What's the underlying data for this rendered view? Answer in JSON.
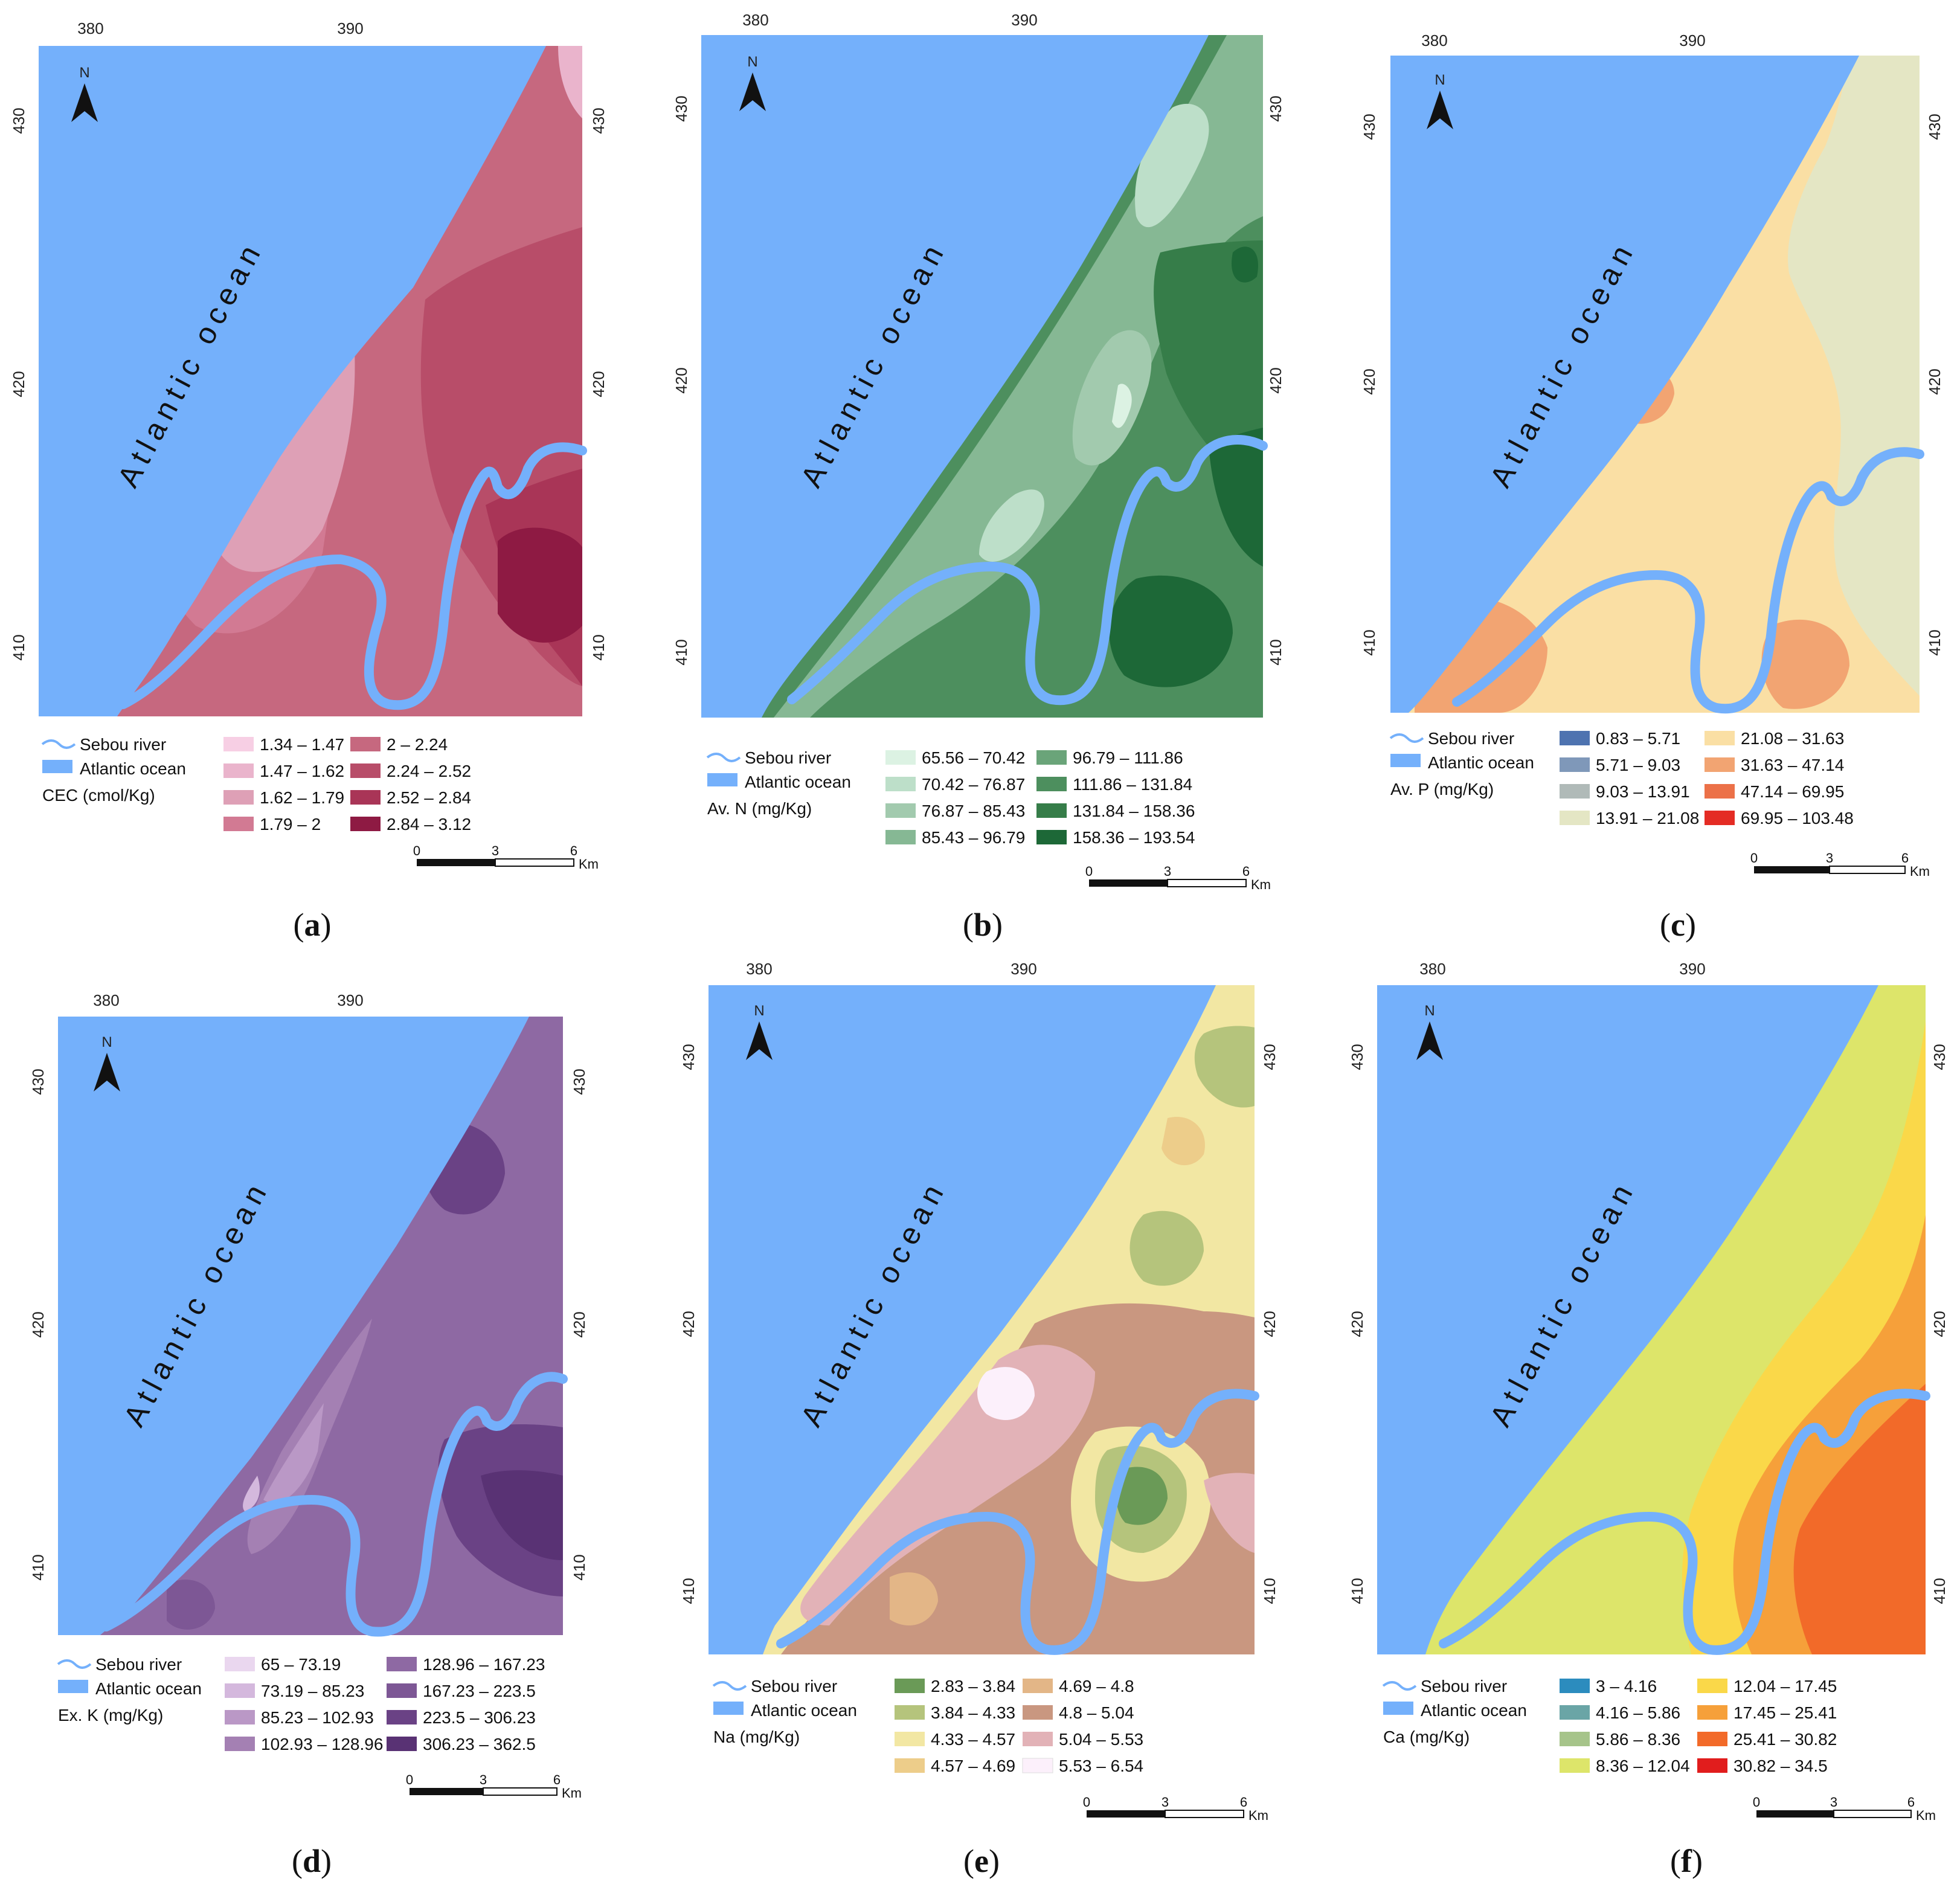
{
  "common": {
    "north": "N",
    "ocean_label": "Atlantic ocean",
    "legend_river": "Sebou river",
    "legend_ocean": "Atlantic ocean",
    "x_ticks": [
      "380",
      "390"
    ],
    "y_ticks": [
      "430",
      "420",
      "410"
    ],
    "scale_ticks": [
      "0",
      "3",
      "6"
    ],
    "scale_unit": "Km",
    "ocean_color": "#74b0fb",
    "river_color": "#74b0fb"
  },
  "panels": [
    {
      "caption": "a",
      "variable": "CEC (cmol/Kg)",
      "classes": [
        {
          "label": "1.34 – 1.47",
          "color": "#f7cfe4"
        },
        {
          "label": "1.47 – 1.62",
          "color": "#eab4cc"
        },
        {
          "label": "1.62 – 1.79",
          "color": "#dea0b6"
        },
        {
          "label": "1.79 – 2",
          "color": "#d27a93"
        },
        {
          "label": "2 – 2.24",
          "color": "#c6687f"
        },
        {
          "label": "2.24 – 2.52",
          "color": "#b84d69"
        },
        {
          "label": "2.52 – 2.84",
          "color": "#a93557"
        },
        {
          "label": "2.84 – 3.12",
          "color": "#8e1a43"
        }
      ]
    },
    {
      "caption": "b",
      "variable": "Av. N (mg/Kg)",
      "classes": [
        {
          "label": "65.56 – 70.42",
          "color": "#dcf2e3"
        },
        {
          "label": "70.42 – 76.87",
          "color": "#bddfc9"
        },
        {
          "label": "76.87 – 85.43",
          "color": "#a2caae"
        },
        {
          "label": "85.43 – 96.79",
          "color": "#86b894"
        },
        {
          "label": "96.79 – 111.86",
          "color": "#6aa479"
        },
        {
          "label": "111.86 – 131.84",
          "color": "#4d8f5e"
        },
        {
          "label": "131.84 – 158.36",
          "color": "#367d49"
        },
        {
          "label": "158.36 – 193.54",
          "color": "#1d6837"
        }
      ]
    },
    {
      "caption": "c",
      "variable": "Av. P (mg/Kg)",
      "classes": [
        {
          "label": "0.83 – 5.71",
          "color": "#4e73b0"
        },
        {
          "label": "5.71 – 9.03",
          "color": "#7f98b9"
        },
        {
          "label": "9.03 – 13.91",
          "color": "#b0bab8"
        },
        {
          "label": "13.91 – 21.08",
          "color": "#e4e6c4"
        },
        {
          "label": "21.08 – 31.63",
          "color": "#fadfa4"
        },
        {
          "label": "31.63 – 47.14",
          "color": "#f2a472"
        },
        {
          "label": "47.14 – 69.95",
          "color": "#ec7148"
        },
        {
          "label": "69.95 – 103.48",
          "color": "#e42c24"
        }
      ]
    },
    {
      "caption": "d",
      "variable": "Ex. K (mg/Kg)",
      "classes": [
        {
          "label": "65 – 73.19",
          "color": "#ead7ef"
        },
        {
          "label": "73.19 – 85.23",
          "color": "#d4b8dd"
        },
        {
          "label": "85.23 – 102.93",
          "color": "#ba98c6"
        },
        {
          "label": "102.93 – 128.96",
          "color": "#a480b3"
        },
        {
          "label": "128.96 – 167.23",
          "color": "#8e69a3"
        },
        {
          "label": "167.23 – 223.5",
          "color": "#7d5795"
        },
        {
          "label": "223.5 – 306.23",
          "color": "#6a4285"
        },
        {
          "label": "306.23 – 362.5",
          "color": "#593274"
        }
      ]
    },
    {
      "caption": "e",
      "variable": "Na (mg/Kg)",
      "classes": [
        {
          "label": "2.83 – 3.84",
          "color": "#6a9a57"
        },
        {
          "label": "3.84 – 4.33",
          "color": "#b5c47c"
        },
        {
          "label": "4.33 – 4.57",
          "color": "#f2e7a3"
        },
        {
          "label": "4.57 – 4.69",
          "color": "#edcd8a"
        },
        {
          "label": "4.69 – 4.8",
          "color": "#e3b687"
        },
        {
          "label": "4.8 – 5.04",
          "color": "#c99780"
        },
        {
          "label": "5.04 – 5.53",
          "color": "#e2b2b7"
        },
        {
          "label": "5.53 – 6.54",
          "color": "#fcf0fb"
        }
      ]
    },
    {
      "caption": "f",
      "variable": "Ca (mg/Kg)",
      "classes": [
        {
          "label": "3 – 4.16",
          "color": "#2c8cbe"
        },
        {
          "label": "4.16 – 5.86",
          "color": "#6aa5a6"
        },
        {
          "label": "5.86 – 8.36",
          "color": "#a6c48a"
        },
        {
          "label": "8.36 – 12.04",
          "color": "#dde56a"
        },
        {
          "label": "12.04 – 17.45",
          "color": "#fad849"
        },
        {
          "label": "17.45 – 25.41",
          "color": "#f6a03a"
        },
        {
          "label": "25.41 – 30.82",
          "color": "#f26a29"
        },
        {
          "label": "30.82 – 34.5",
          "color": "#e11d1d"
        }
      ]
    }
  ]
}
